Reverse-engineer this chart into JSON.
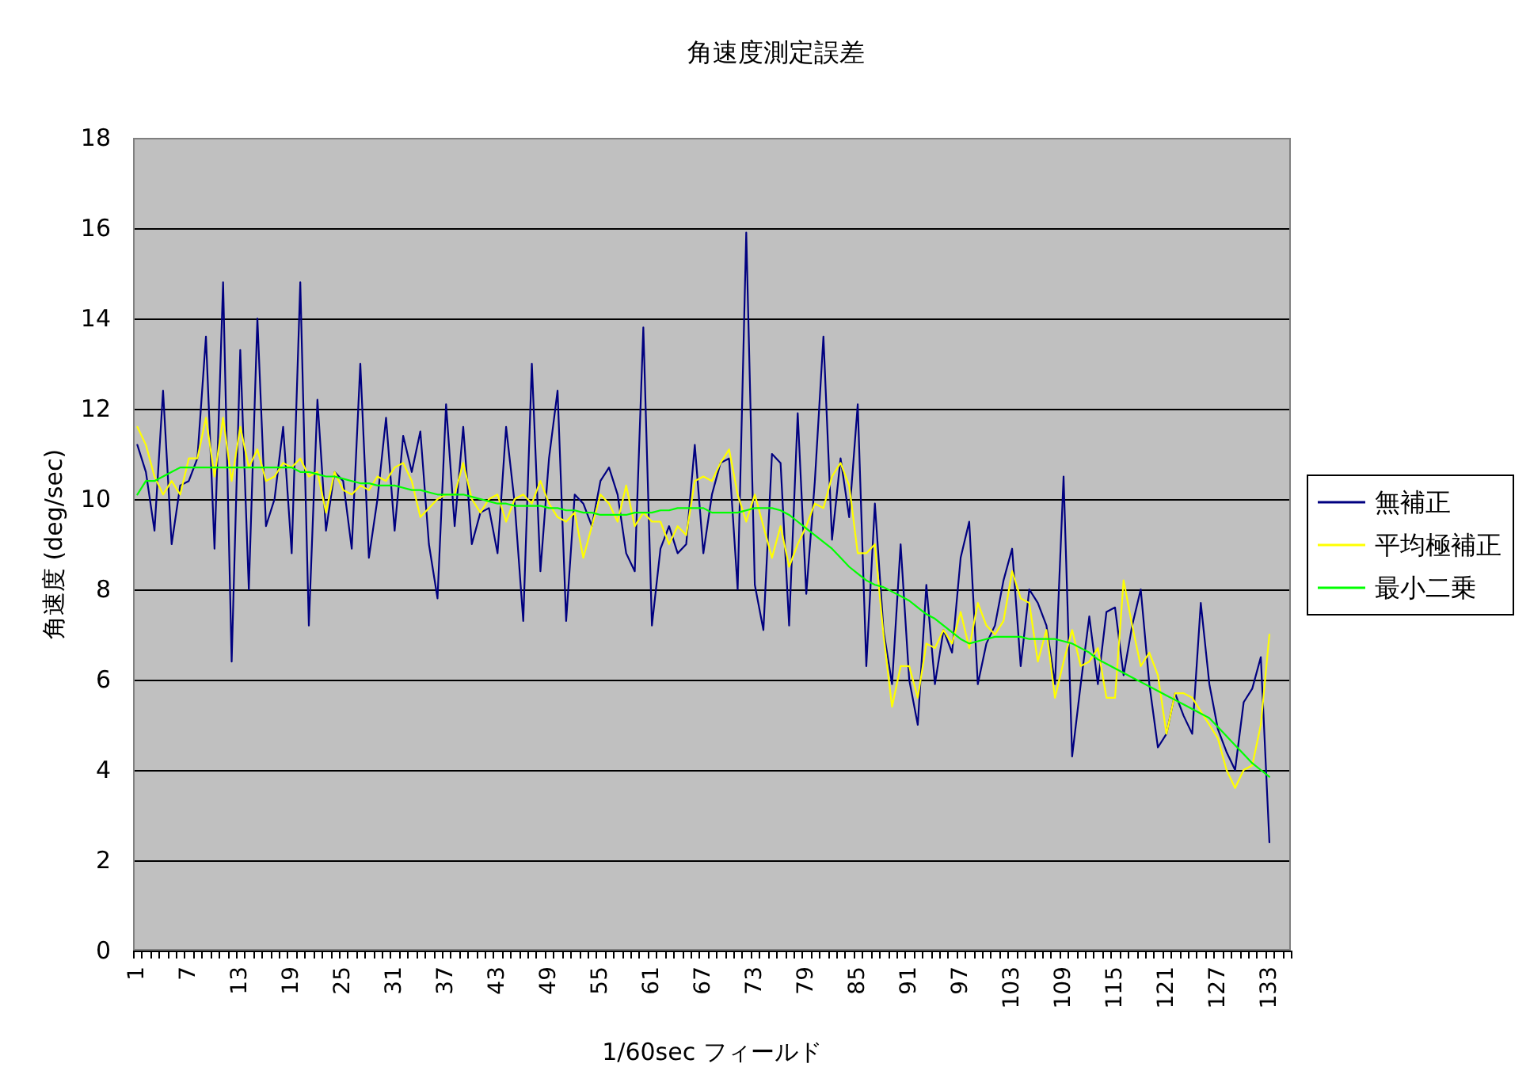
{
  "chart_data": {
    "type": "line",
    "title": "角速度測定誤差",
    "xlabel": "1/60sec フィールド",
    "ylabel": "角速度 (deg/sec)",
    "categories": [
      "1",
      null,
      null,
      null,
      null,
      null,
      "7",
      null,
      null,
      null,
      null,
      null,
      "13",
      null,
      null,
      null,
      null,
      null,
      "19",
      null,
      null,
      null,
      null,
      null,
      "25",
      null,
      null,
      null,
      null,
      null,
      "31",
      null,
      null,
      null,
      null,
      null,
      "37",
      null,
      null,
      null,
      null,
      null,
      "43",
      null,
      null,
      null,
      null,
      null,
      "49",
      null,
      null,
      null,
      null,
      null,
      "55",
      null,
      null,
      null,
      null,
      null,
      "61",
      null,
      null,
      null,
      null,
      null,
      "67",
      null,
      null,
      null,
      null,
      null,
      "73",
      null,
      null,
      null,
      null,
      null,
      "79",
      null,
      null,
      null,
      null,
      null,
      "85",
      null,
      null,
      null,
      null,
      null,
      "91",
      null,
      null,
      null,
      null,
      null,
      "97",
      null,
      null,
      null,
      null,
      null,
      "103",
      null,
      null,
      null,
      null,
      null,
      "109",
      null,
      null,
      null,
      null,
      null,
      "115",
      null,
      null,
      null,
      null,
      null,
      "121",
      null,
      null,
      null,
      null,
      null,
      "127",
      null,
      null,
      null,
      null,
      null,
      "133",
      null,
      null
    ],
    "series": [
      {
        "name": "無補正",
        "color": "#000080",
        "values": [
          11.2,
          10.6,
          9.3,
          12.4,
          9.0,
          10.3,
          10.4,
          10.9,
          13.6,
          8.9,
          14.8,
          6.4,
          13.3,
          8.0,
          14.0,
          9.4,
          10.0,
          11.6,
          8.8,
          14.8,
          7.2,
          12.2,
          9.3,
          10.6,
          10.4,
          8.9,
          13.0,
          8.7,
          10.0,
          11.8,
          9.3,
          11.4,
          10.6,
          11.5,
          9.0,
          7.8,
          12.1,
          9.4,
          11.6,
          9.0,
          9.7,
          9.8,
          8.8,
          11.6,
          9.9,
          7.3,
          13.0,
          8.4,
          10.9,
          12.4,
          7.3,
          10.1,
          9.9,
          9.4,
          10.4,
          10.7,
          10.1,
          8.8,
          8.4,
          13.8,
          7.2,
          8.9,
          9.4,
          8.8,
          9.0,
          11.2,
          8.8,
          10.1,
          10.8,
          10.9,
          8.0,
          15.9,
          8.1,
          7.1,
          11.0,
          10.8,
          7.2,
          11.9,
          7.9,
          10.4,
          13.6,
          9.1,
          10.9,
          9.6,
          12.1,
          6.3,
          9.9,
          7.1,
          5.9,
          9.0,
          6.0,
          5.0,
          8.1,
          5.9,
          7.1,
          6.6,
          8.7,
          9.5,
          5.9,
          6.8,
          7.2,
          8.2,
          8.9,
          6.3,
          8.0,
          7.7,
          7.2,
          5.9,
          10.5,
          4.3,
          5.9,
          7.4,
          5.9,
          7.5,
          7.6,
          6.1,
          7.2,
          8.0,
          5.9,
          4.5,
          4.8,
          5.7,
          5.2,
          4.8,
          7.7,
          5.9,
          4.9,
          4.4,
          4.0,
          5.5,
          5.8,
          6.5,
          2.4,
          null,
          null
        ]
      },
      {
        "name": "平均極補正",
        "color": "#ffff00",
        "values": [
          11.6,
          11.2,
          10.5,
          10.1,
          10.4,
          10.1,
          10.9,
          10.9,
          11.8,
          10.5,
          11.8,
          10.4,
          11.6,
          10.7,
          11.1,
          10.4,
          10.5,
          10.8,
          10.7,
          10.9,
          10.5,
          10.6,
          9.7,
          10.6,
          10.2,
          10.1,
          10.3,
          10.2,
          10.5,
          10.4,
          10.7,
          10.8,
          10.4,
          9.6,
          9.8,
          10.0,
          10.1,
          10.1,
          10.8,
          10.0,
          9.7,
          10.0,
          10.1,
          9.5,
          10.0,
          10.1,
          9.9,
          10.4,
          9.9,
          9.6,
          9.5,
          9.7,
          8.7,
          9.4,
          10.1,
          9.9,
          9.5,
          10.3,
          9.4,
          9.7,
          9.5,
          9.5,
          9.0,
          9.4,
          9.2,
          10.4,
          10.5,
          10.4,
          10.8,
          11.1,
          10.1,
          9.5,
          10.1,
          9.4,
          8.7,
          9.4,
          8.5,
          9.0,
          9.4,
          9.9,
          9.8,
          10.5,
          10.8,
          10.3,
          8.8,
          8.8,
          9.0,
          7.0,
          5.4,
          6.3,
          6.3,
          5.6,
          6.8,
          6.7,
          7.1,
          6.8,
          7.5,
          6.7,
          7.7,
          7.2,
          7.0,
          7.3,
          8.4,
          7.8,
          7.7,
          6.4,
          7.1,
          5.6,
          6.4,
          7.1,
          6.3,
          6.4,
          6.7,
          5.6,
          5.6,
          8.2,
          7.2,
          6.3,
          6.6,
          6.1,
          4.8,
          5.7,
          5.7,
          5.6,
          5.3,
          5.0,
          4.7,
          4.0,
          3.6,
          4.0,
          4.1,
          5.0,
          7.0,
          null,
          null
        ]
      },
      {
        "name": "最小二乗",
        "color": "#00ff00",
        "values": [
          10.1,
          10.4,
          10.4,
          10.5,
          10.6,
          10.7,
          10.7,
          10.7,
          10.7,
          10.7,
          10.7,
          10.7,
          10.7,
          10.7,
          10.7,
          10.7,
          10.7,
          10.7,
          10.7,
          10.6,
          10.6,
          10.55,
          10.5,
          10.5,
          10.45,
          10.4,
          10.35,
          10.35,
          10.3,
          10.3,
          10.3,
          10.25,
          10.2,
          10.2,
          10.15,
          10.1,
          10.1,
          10.1,
          10.1,
          10.05,
          10.0,
          9.95,
          9.9,
          9.9,
          9.85,
          9.85,
          9.85,
          9.85,
          9.8,
          9.8,
          9.75,
          9.75,
          9.7,
          9.7,
          9.65,
          9.65,
          9.65,
          9.65,
          9.7,
          9.7,
          9.7,
          9.75,
          9.75,
          9.8,
          9.8,
          9.8,
          9.8,
          9.7,
          9.7,
          9.7,
          9.7,
          9.75,
          9.8,
          9.8,
          9.8,
          9.75,
          9.65,
          9.5,
          9.35,
          9.2,
          9.05,
          8.9,
          8.7,
          8.5,
          8.35,
          8.2,
          8.1,
          8.05,
          7.95,
          7.85,
          7.75,
          7.6,
          7.45,
          7.35,
          7.2,
          7.05,
          6.9,
          6.8,
          6.85,
          6.9,
          6.95,
          6.95,
          6.95,
          6.95,
          6.9,
          6.9,
          6.9,
          6.9,
          6.85,
          6.8,
          6.7,
          6.6,
          6.45,
          6.35,
          6.25,
          6.15,
          6.05,
          5.95,
          5.85,
          5.75,
          5.65,
          5.55,
          5.45,
          5.35,
          5.25,
          5.15,
          4.95,
          4.75,
          4.55,
          4.35,
          4.15,
          4.0,
          3.85,
          null,
          null
        ]
      }
    ],
    "ylim": [
      0,
      18
    ],
    "yticks": [
      0,
      2,
      4,
      6,
      8,
      10,
      12,
      14,
      16,
      18
    ],
    "grid": "y",
    "legend": "right"
  }
}
